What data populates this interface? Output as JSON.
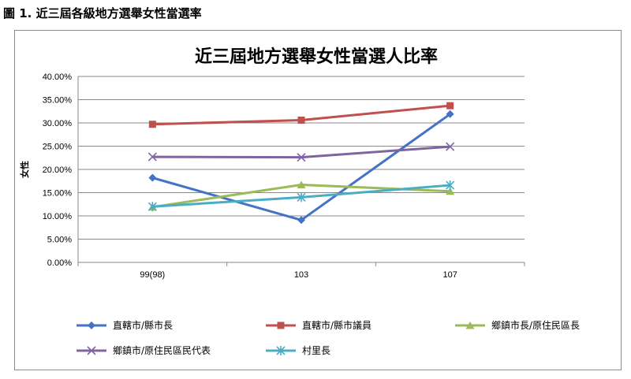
{
  "caption": "圖 1. 近三屆各級地方選舉女性當選率",
  "chart_data": {
    "type": "line",
    "title": "近三屆地方選舉女性當選人比率",
    "ylabel": "女性",
    "xlabel": "",
    "categories": [
      "99(98)",
      "103",
      "107"
    ],
    "ylim": [
      0,
      40
    ],
    "yticks": [
      "0.00%",
      "5.00%",
      "10.00%",
      "15.00%",
      "20.00%",
      "25.00%",
      "30.00%",
      "35.00%",
      "40.00%"
    ],
    "grid": true,
    "legend_position": "bottom",
    "series": [
      {
        "name": "直轄市/縣市長",
        "values": [
          18.2,
          9.1,
          31.9
        ],
        "color": "#4472C4",
        "marker": "diamond"
      },
      {
        "name": "直轄市/縣市議員",
        "values": [
          29.7,
          30.6,
          33.7
        ],
        "color": "#C0504D",
        "marker": "square"
      },
      {
        "name": "鄉鎮市長/原住民區長",
        "values": [
          11.9,
          16.7,
          15.3
        ],
        "color": "#9BBB59",
        "marker": "triangle"
      },
      {
        "name": "鄉鎮市/原住民區民代表",
        "values": [
          22.7,
          22.6,
          24.9
        ],
        "color": "#8064A2",
        "marker": "x"
      },
      {
        "name": "村里長",
        "values": [
          12.0,
          14.0,
          16.6
        ],
        "color": "#4BACC6",
        "marker": "star"
      }
    ]
  }
}
